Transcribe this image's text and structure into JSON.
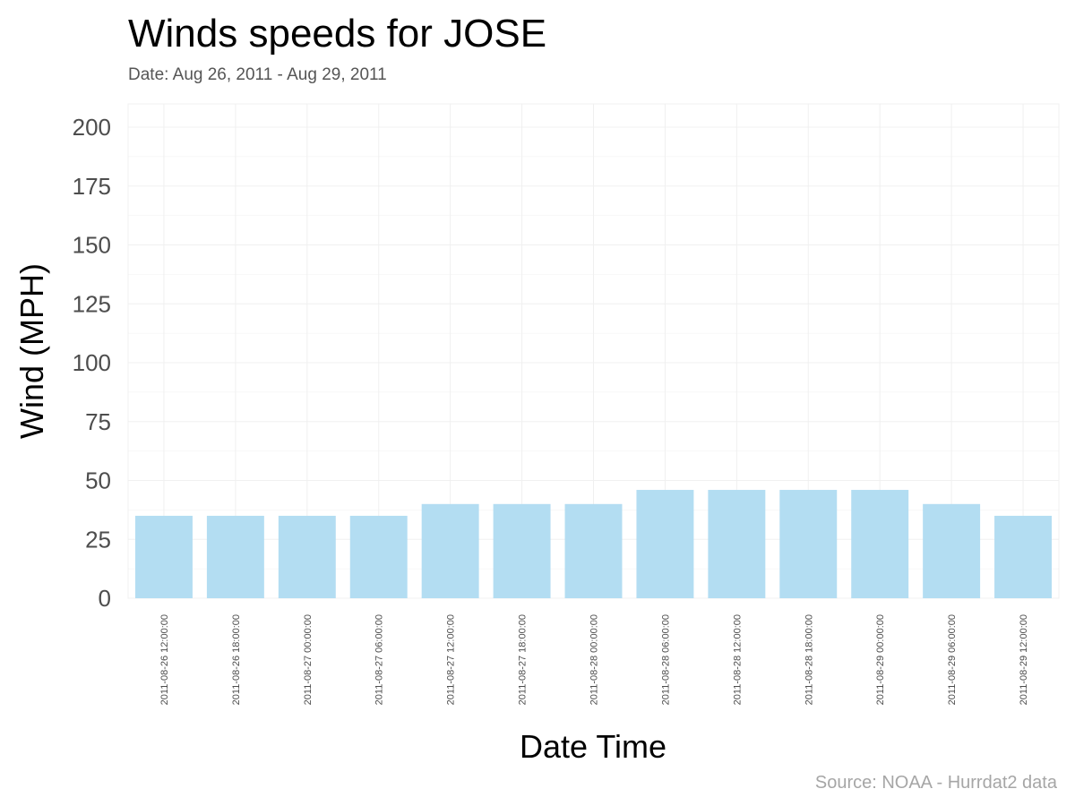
{
  "chart_data": {
    "type": "bar",
    "title": "Winds speeds for JOSE",
    "subtitle": "Date:  Aug 26, 2011 - Aug 29, 2011",
    "xlabel": "Date Time",
    "ylabel": "Wind (MPH)",
    "caption": "Source: NOAA - Hurrdat2 data",
    "categories": [
      "2011-08-26 12:00:00",
      "2011-08-26 18:00:00",
      "2011-08-27 00:00:00",
      "2011-08-27 06:00:00",
      "2011-08-27 12:00:00",
      "2011-08-27 18:00:00",
      "2011-08-28 00:00:00",
      "2011-08-28 06:00:00",
      "2011-08-28 12:00:00",
      "2011-08-28 18:00:00",
      "2011-08-29 00:00:00",
      "2011-08-29 06:00:00",
      "2011-08-29 12:00:00"
    ],
    "values": [
      35,
      35,
      35,
      35,
      40,
      40,
      40,
      46,
      46,
      46,
      46,
      40,
      35
    ],
    "ylim": [
      0,
      210
    ],
    "yticks": [
      0,
      25,
      50,
      75,
      100,
      125,
      150,
      175,
      200
    ],
    "grid": true,
    "legend": "none",
    "bar_color": "#b3ddf2"
  }
}
